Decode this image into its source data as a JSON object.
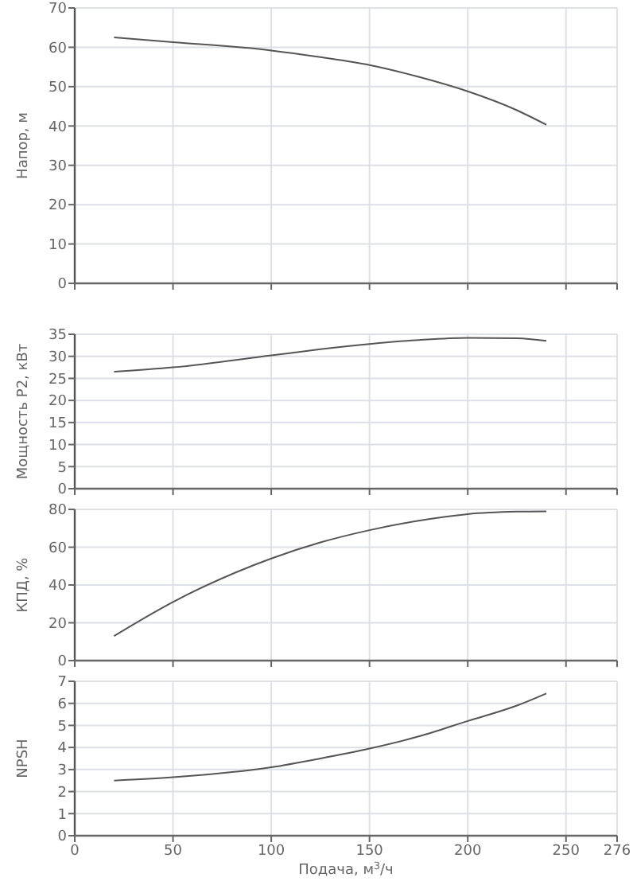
{
  "chart_data": [
    {
      "type": "line",
      "ylabel": "Напор, м",
      "x": [
        20,
        50,
        100,
        125,
        150,
        175,
        200,
        225,
        240
      ],
      "series": [
        {
          "color": "#555555",
          "values": [
            62.5,
            61.3,
            59.2,
            57.5,
            55.5,
            52.5,
            48.8,
            44,
            40.3
          ]
        }
      ],
      "xlim": [
        0,
        276
      ],
      "xticks": [
        0,
        50,
        100,
        150,
        200,
        250,
        276
      ],
      "ylim": [
        0,
        70
      ],
      "yticks": [
        0,
        10,
        20,
        30,
        40,
        50,
        60,
        70
      ],
      "grid": true,
      "tick_labels": "y"
    },
    {
      "type": "line",
      "ylabel": "Мощность P2, кВт",
      "x": [
        20,
        50,
        100,
        125,
        150,
        175,
        200,
        225,
        240
      ],
      "series": [
        {
          "color": "#555555",
          "values": [
            26.5,
            27.5,
            30.2,
            31.6,
            32.8,
            33.7,
            34.2,
            34.1,
            33.5
          ]
        }
      ],
      "xlim": [
        0,
        276
      ],
      "xticks": [
        0,
        50,
        100,
        150,
        200,
        250,
        276
      ],
      "ylim": [
        0,
        35
      ],
      "yticks": [
        0,
        5,
        10,
        15,
        20,
        25,
        30,
        35
      ],
      "grid": true,
      "tick_labels": "y"
    },
    {
      "type": "line",
      "ylabel": "КПД, %",
      "x": [
        20,
        50,
        100,
        125,
        150,
        175,
        200,
        225,
        240
      ],
      "series": [
        {
          "color": "#555555",
          "values": [
            13,
            31,
            54,
            62.5,
            69,
            74,
            77.5,
            78.8,
            79
          ]
        }
      ],
      "xlim": [
        0,
        276
      ],
      "xticks": [
        0,
        50,
        100,
        150,
        200,
        250,
        276
      ],
      "ylim": [
        0,
        80
      ],
      "yticks": [
        0,
        20,
        40,
        60,
        80
      ],
      "grid": true,
      "tick_labels": "y"
    },
    {
      "type": "line",
      "ylabel": "NPSH",
      "xlabel": "Подача, м$^{3}$/ч",
      "x": [
        20,
        50,
        100,
        125,
        150,
        175,
        200,
        225,
        240
      ],
      "series": [
        {
          "color": "#555555",
          "values": [
            2.5,
            2.65,
            3.1,
            3.5,
            3.95,
            4.5,
            5.2,
            5.9,
            6.45
          ]
        }
      ],
      "xlim": [
        0,
        276
      ],
      "xticks": [
        0,
        50,
        100,
        150,
        200,
        250,
        276
      ],
      "ylim": [
        0,
        7
      ],
      "yticks": [
        0,
        1,
        2,
        3,
        4,
        5,
        6,
        7
      ],
      "grid": true
    }
  ]
}
